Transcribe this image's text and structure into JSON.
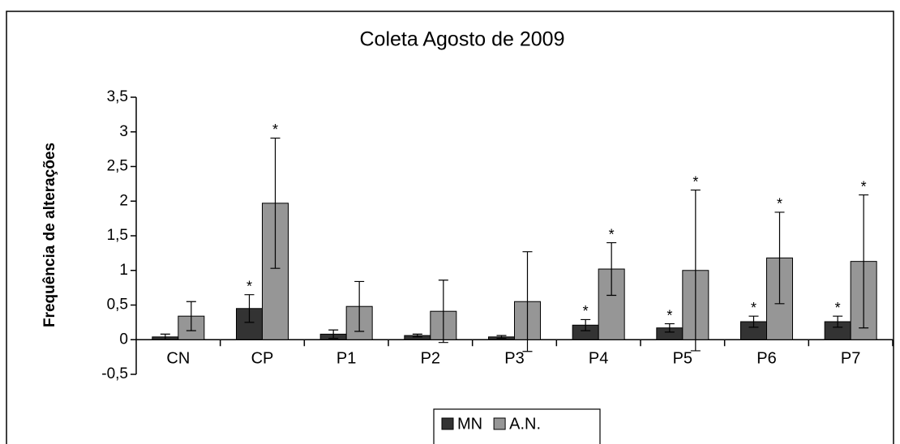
{
  "chart_data": {
    "type": "bar",
    "title": "Coleta Agosto de 2009",
    "ylabel": "Frequência de alterações",
    "categories": [
      "CN",
      "CP",
      "P1",
      "P2",
      "P3",
      "P4",
      "P5",
      "P6",
      "P7"
    ],
    "series": [
      {
        "name": "MN",
        "color": "#333333",
        "values": [
          0.04,
          0.45,
          0.08,
          0.06,
          0.04,
          0.21,
          0.17,
          0.26,
          0.26
        ],
        "errors": [
          0.04,
          0.2,
          0.06,
          0.02,
          0.02,
          0.08,
          0.06,
          0.08,
          0.08
        ],
        "significance": [
          null,
          "*",
          null,
          null,
          null,
          "*",
          "*",
          "*",
          "*"
        ]
      },
      {
        "name": "A.N.",
        "color": "#969696",
        "values": [
          0.34,
          1.97,
          0.48,
          0.41,
          0.55,
          1.02,
          1.0,
          1.18,
          1.13
        ],
        "errors": [
          0.21,
          0.94,
          0.36,
          0.45,
          0.72,
          0.38,
          1.16,
          0.66,
          0.96
        ],
        "significance": [
          null,
          "*",
          null,
          null,
          null,
          "*",
          "*",
          "*",
          "*"
        ]
      }
    ],
    "ylim": [
      -0.5,
      3.5
    ],
    "yticks": [
      {
        "value": -0.5,
        "label": "-0,5"
      },
      0,
      {
        "value": 0.5,
        "label": "0,5"
      },
      1,
      {
        "value": 1.5,
        "label": "1,5"
      },
      2,
      {
        "value": 2.5,
        "label": "2,5"
      },
      3,
      {
        "value": 3.5,
        "label": "3,5"
      }
    ],
    "legend": "bottom"
  }
}
